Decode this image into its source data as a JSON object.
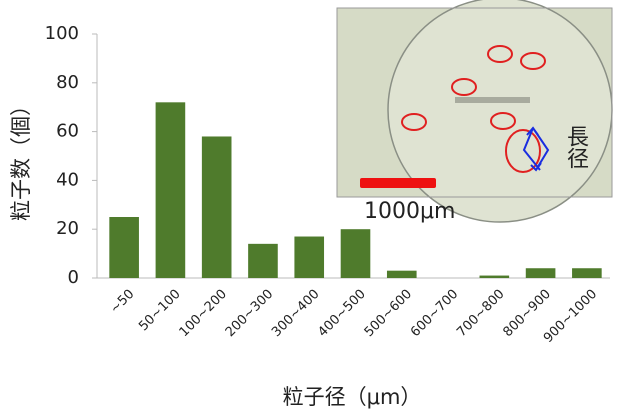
{
  "chart_data": {
    "type": "bar",
    "categories": [
      "~50",
      "50~100",
      "100~200",
      "200~300",
      "300~400",
      "400~500",
      "500~600",
      "600~700",
      "700~800",
      "800~900",
      "900~1000"
    ],
    "values": [
      25,
      72,
      58,
      14,
      17,
      20,
      3,
      0,
      1,
      4,
      4
    ],
    "color": "#4f7b2c",
    "ylim": [
      0,
      100
    ],
    "yticks": [
      0,
      20,
      40,
      60,
      80,
      100
    ],
    "x_label": "粒子径（μm）",
    "y_label": "粒子数（個）",
    "grid": false,
    "annotations": [
      "1000μm",
      "長径"
    ]
  }
}
